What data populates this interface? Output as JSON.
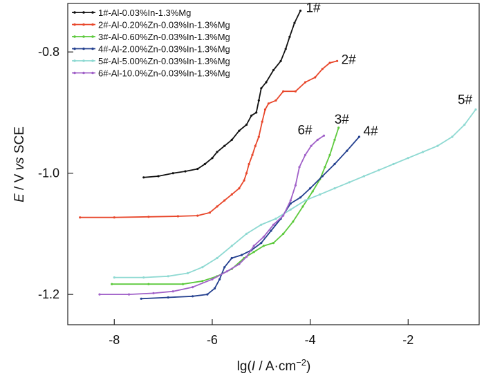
{
  "chart_data": {
    "type": "line",
    "title": "",
    "xlabel_parts": [
      "lg(",
      "I",
      " / A·cm",
      "−2",
      ")"
    ],
    "ylabel_parts": [
      "E",
      " / V ",
      "vs",
      " SCE"
    ],
    "xlim": [
      -8.95,
      -0.55
    ],
    "ylim": [
      -1.25,
      -0.72
    ],
    "xticks": [
      -8,
      -6,
      -4,
      -2
    ],
    "yticks": [
      -0.8,
      -1.0,
      -1.2
    ],
    "xtick_labels": [
      "-8",
      "-6",
      "-4",
      "-2"
    ],
    "ytick_labels": [
      "-0.8",
      "-1.0",
      "-1.2"
    ],
    "grid": false,
    "legend_position": "top-left",
    "series": [
      {
        "name": "1#-Al-0.03%In-1.3%Mg",
        "label": "1#",
        "color": "#111111",
        "points": [
          [
            -7.4,
            -1.007
          ],
          [
            -7.1,
            -1.005
          ],
          [
            -6.8,
            -1.0
          ],
          [
            -6.55,
            -0.997
          ],
          [
            -6.3,
            -0.993
          ],
          [
            -6.15,
            -0.985
          ],
          [
            -6.0,
            -0.975
          ],
          [
            -5.9,
            -0.965
          ],
          [
            -5.75,
            -0.955
          ],
          [
            -5.6,
            -0.945
          ],
          [
            -5.45,
            -0.93
          ],
          [
            -5.3,
            -0.92
          ],
          [
            -5.2,
            -0.905
          ],
          [
            -5.1,
            -0.9
          ],
          [
            -5.05,
            -0.88
          ],
          [
            -5.0,
            -0.86
          ],
          [
            -4.9,
            -0.85
          ],
          [
            -4.75,
            -0.83
          ],
          [
            -4.6,
            -0.815
          ],
          [
            -4.5,
            -0.795
          ],
          [
            -4.42,
            -0.775
          ],
          [
            -4.32,
            -0.752
          ],
          [
            -4.2,
            -0.732
          ]
        ]
      },
      {
        "name": "2#-Al-0.20%Zn-0.03%In-1.3%Mg",
        "label": "2#",
        "color": "#e8462a",
        "points": [
          [
            -8.7,
            -1.073
          ],
          [
            -8.0,
            -1.073
          ],
          [
            -7.3,
            -1.072
          ],
          [
            -6.7,
            -1.071
          ],
          [
            -6.3,
            -1.07
          ],
          [
            -6.05,
            -1.065
          ],
          [
            -5.9,
            -1.055
          ],
          [
            -5.75,
            -1.045
          ],
          [
            -5.6,
            -1.035
          ],
          [
            -5.45,
            -1.025
          ],
          [
            -5.35,
            -1.012
          ],
          [
            -5.3,
            -1.0
          ],
          [
            -5.25,
            -0.985
          ],
          [
            -5.18,
            -0.97
          ],
          [
            -5.12,
            -0.955
          ],
          [
            -5.05,
            -0.94
          ],
          [
            -4.98,
            -0.915
          ],
          [
            -4.92,
            -0.895
          ],
          [
            -4.85,
            -0.885
          ],
          [
            -4.7,
            -0.88
          ],
          [
            -4.55,
            -0.865
          ],
          [
            -4.3,
            -0.865
          ],
          [
            -4.1,
            -0.85
          ],
          [
            -3.9,
            -0.842
          ],
          [
            -3.75,
            -0.828
          ],
          [
            -3.6,
            -0.818
          ],
          [
            -3.45,
            -0.815
          ]
        ]
      },
      {
        "name": "3#-Al-0.60%Zn-0.03%In-1.3%Mg",
        "label": "3#",
        "color": "#5cc93c",
        "points": [
          [
            -8.05,
            -1.183
          ],
          [
            -7.3,
            -1.183
          ],
          [
            -6.6,
            -1.183
          ],
          [
            -6.2,
            -1.178
          ],
          [
            -5.9,
            -1.17
          ],
          [
            -5.6,
            -1.158
          ],
          [
            -5.35,
            -1.14
          ],
          [
            -5.15,
            -1.13
          ],
          [
            -4.95,
            -1.12
          ],
          [
            -4.75,
            -1.115
          ],
          [
            -4.55,
            -1.1
          ],
          [
            -4.35,
            -1.08
          ],
          [
            -4.15,
            -1.055
          ],
          [
            -3.95,
            -1.03
          ],
          [
            -3.8,
            -1.01
          ],
          [
            -3.7,
            -0.99
          ],
          [
            -3.6,
            -0.97
          ],
          [
            -3.5,
            -0.945
          ],
          [
            -3.42,
            -0.925
          ]
        ]
      },
      {
        "name": "4#-Al-2.00%Zn-0.03%In-1.3%Mg",
        "label": "4#",
        "color": "#24408f",
        "points": [
          [
            -7.45,
            -1.207
          ],
          [
            -6.9,
            -1.205
          ],
          [
            -6.4,
            -1.203
          ],
          [
            -6.1,
            -1.2
          ],
          [
            -5.95,
            -1.19
          ],
          [
            -5.85,
            -1.175
          ],
          [
            -5.75,
            -1.155
          ],
          [
            -5.6,
            -1.14
          ],
          [
            -5.4,
            -1.135
          ],
          [
            -5.2,
            -1.127
          ],
          [
            -5.0,
            -1.115
          ],
          [
            -4.8,
            -1.095
          ],
          [
            -4.6,
            -1.075
          ],
          [
            -4.4,
            -1.05
          ],
          [
            -4.2,
            -1.04
          ],
          [
            -4.0,
            -1.025
          ],
          [
            -3.75,
            -1.005
          ],
          [
            -3.5,
            -0.985
          ],
          [
            -3.25,
            -0.963
          ],
          [
            -3.0,
            -0.94
          ]
        ]
      },
      {
        "name": "5#-Al-5.00%Zn-0.03%In-1.3%Mg",
        "label": "5#",
        "color": "#8ed9d2",
        "points": [
          [
            -8.0,
            -1.172
          ],
          [
            -7.4,
            -1.172
          ],
          [
            -6.9,
            -1.17
          ],
          [
            -6.5,
            -1.165
          ],
          [
            -6.2,
            -1.155
          ],
          [
            -5.9,
            -1.14
          ],
          [
            -5.6,
            -1.12
          ],
          [
            -5.3,
            -1.1
          ],
          [
            -5.0,
            -1.085
          ],
          [
            -4.7,
            -1.075
          ],
          [
            -4.4,
            -1.06
          ],
          [
            -4.1,
            -1.045
          ],
          [
            -3.8,
            -1.035
          ],
          [
            -3.5,
            -1.025
          ],
          [
            -3.2,
            -1.015
          ],
          [
            -2.9,
            -1.005
          ],
          [
            -2.6,
            -0.995
          ],
          [
            -2.3,
            -0.985
          ],
          [
            -2.0,
            -0.975
          ],
          [
            -1.7,
            -0.965
          ],
          [
            -1.4,
            -0.955
          ],
          [
            -1.1,
            -0.94
          ],
          [
            -0.85,
            -0.92
          ],
          [
            -0.62,
            -0.895
          ]
        ]
      },
      {
        "name": "6#-Al-10.0%Zn-0.03%In-1.3%Mg",
        "label": "6#",
        "color": "#a060c8",
        "points": [
          [
            -8.3,
            -1.2
          ],
          [
            -7.7,
            -1.2
          ],
          [
            -7.2,
            -1.198
          ],
          [
            -6.8,
            -1.195
          ],
          [
            -6.4,
            -1.188
          ],
          [
            -6.0,
            -1.175
          ],
          [
            -5.7,
            -1.162
          ],
          [
            -5.45,
            -1.15
          ],
          [
            -5.3,
            -1.138
          ],
          [
            -5.15,
            -1.12
          ],
          [
            -4.95,
            -1.105
          ],
          [
            -4.75,
            -1.085
          ],
          [
            -4.55,
            -1.07
          ],
          [
            -4.4,
            -1.045
          ],
          [
            -4.3,
            -1.02
          ],
          [
            -4.22,
            -0.99
          ],
          [
            -4.1,
            -0.97
          ],
          [
            -3.98,
            -0.955
          ],
          [
            -3.85,
            -0.945
          ],
          [
            -3.72,
            -0.938
          ]
        ]
      }
    ]
  }
}
